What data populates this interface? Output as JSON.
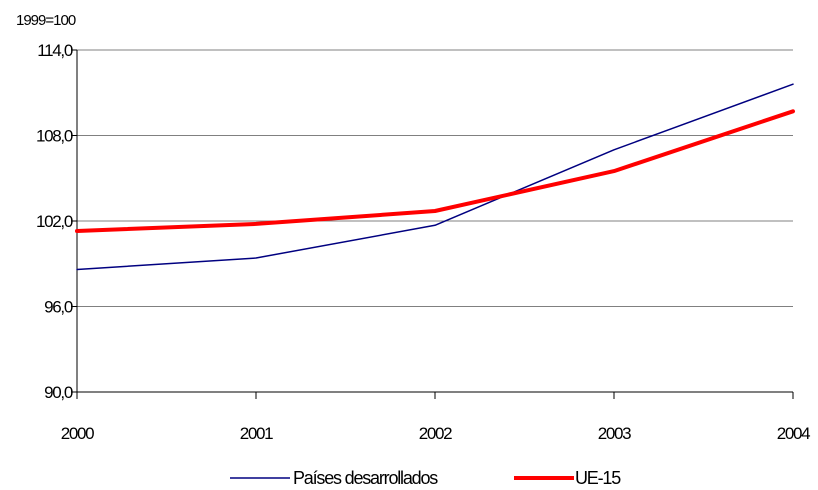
{
  "chart_data": {
    "type": "line",
    "unit_label": "1999=100",
    "x": [
      "2000",
      "2001",
      "2002",
      "2003",
      "2004"
    ],
    "y_ticks": [
      "90,0",
      "96,0",
      "102,0",
      "108,0",
      "114,0"
    ],
    "ylim": [
      90,
      114
    ],
    "grid": true,
    "legend_position": "bottom",
    "series": [
      {
        "name": "Países desarrollados",
        "color": "#000080",
        "values": [
          98.6,
          99.4,
          101.7,
          107.0,
          111.6
        ]
      },
      {
        "name": "UE-15",
        "color": "#ff0000",
        "values": [
          101.3,
          101.8,
          102.7,
          105.5,
          109.7
        ]
      }
    ]
  }
}
